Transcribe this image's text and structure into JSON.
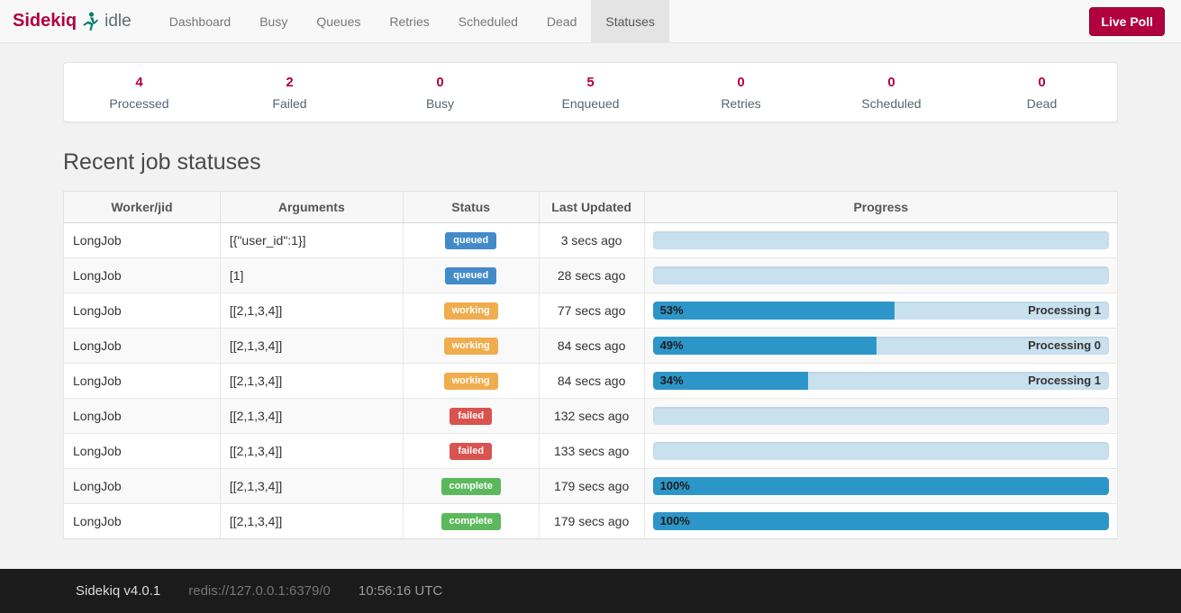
{
  "navbar": {
    "brand": "Sidekiq",
    "status_text": "idle",
    "items": [
      {
        "id": "dashboard",
        "label": "Dashboard",
        "active": false
      },
      {
        "id": "busy",
        "label": "Busy",
        "active": false
      },
      {
        "id": "queues",
        "label": "Queues",
        "active": false
      },
      {
        "id": "retries",
        "label": "Retries",
        "active": false
      },
      {
        "id": "scheduled",
        "label": "Scheduled",
        "active": false
      },
      {
        "id": "dead",
        "label": "Dead",
        "active": false
      },
      {
        "id": "statuses",
        "label": "Statuses",
        "active": true
      }
    ],
    "live_poll_label": "Live Poll"
  },
  "stats": [
    {
      "id": "processed",
      "value": "4",
      "label": "Processed"
    },
    {
      "id": "failed",
      "value": "2",
      "label": "Failed"
    },
    {
      "id": "busy",
      "value": "0",
      "label": "Busy"
    },
    {
      "id": "enqueued",
      "value": "5",
      "label": "Enqueued"
    },
    {
      "id": "retries",
      "value": "0",
      "label": "Retries"
    },
    {
      "id": "scheduled",
      "value": "0",
      "label": "Scheduled"
    },
    {
      "id": "dead",
      "value": "0",
      "label": "Dead"
    }
  ],
  "main": {
    "heading": "Recent job statuses"
  },
  "table": {
    "columns": [
      "Worker/jid",
      "Arguments",
      "Status",
      "Last Updated",
      "Progress"
    ],
    "rows": [
      {
        "worker": "LongJob",
        "args": "[{\"user_id\":1}]",
        "status": "queued",
        "last_updated": "3 secs ago",
        "percent": 0,
        "percent_label": "",
        "message": ""
      },
      {
        "worker": "LongJob",
        "args": "[1]",
        "status": "queued",
        "last_updated": "28 secs ago",
        "percent": 0,
        "percent_label": "",
        "message": ""
      },
      {
        "worker": "LongJob",
        "args": "[[2,1,3,4]]",
        "status": "working",
        "last_updated": "77 secs ago",
        "percent": 53,
        "percent_label": "53%",
        "message": "Processing 1"
      },
      {
        "worker": "LongJob",
        "args": "[[2,1,3,4]]",
        "status": "working",
        "last_updated": "84 secs ago",
        "percent": 49,
        "percent_label": "49%",
        "message": "Processing 0"
      },
      {
        "worker": "LongJob",
        "args": "[[2,1,3,4]]",
        "status": "working",
        "last_updated": "84 secs ago",
        "percent": 34,
        "percent_label": "34%",
        "message": "Processing 1"
      },
      {
        "worker": "LongJob",
        "args": "[[2,1,3,4]]",
        "status": "failed",
        "last_updated": "132 secs ago",
        "percent": 0,
        "percent_label": "",
        "message": ""
      },
      {
        "worker": "LongJob",
        "args": "[[2,1,3,4]]",
        "status": "failed",
        "last_updated": "133 secs ago",
        "percent": 0,
        "percent_label": "",
        "message": ""
      },
      {
        "worker": "LongJob",
        "args": "[[2,1,3,4]]",
        "status": "complete",
        "last_updated": "179 secs ago",
        "percent": 100,
        "percent_label": "100%",
        "message": ""
      },
      {
        "worker": "LongJob",
        "args": "[[2,1,3,4]]",
        "status": "complete",
        "last_updated": "179 secs ago",
        "percent": 100,
        "percent_label": "100%",
        "message": ""
      }
    ]
  },
  "footer": {
    "version": "Sidekiq v4.0.1",
    "redis_url": "redis://127.0.0.1:6379/0",
    "time": "10:56:16 UTC"
  },
  "colors": {
    "brand": "#b1003e",
    "live_poll_bg": "#b1003e",
    "logo_icon": "#007f69",
    "status_badges": {
      "queued": "#428bca",
      "working": "#f0ad4e",
      "failed": "#d9534f",
      "complete": "#5cb85c"
    },
    "progress_fill": "#2d96c8",
    "progress_track": "#c9e0ef",
    "footer_bg": "#1b1b1b"
  }
}
